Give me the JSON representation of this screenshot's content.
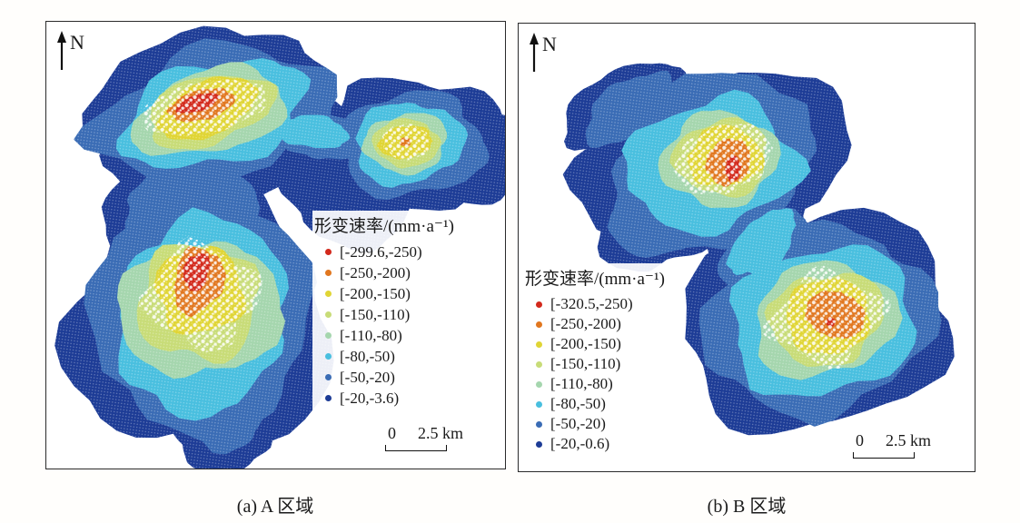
{
  "figure": {
    "panels": [
      {
        "id": "panel-a",
        "caption": "(a) A 区域",
        "north_label": "N",
        "legend": {
          "title": "形变速率/(mm·a⁻¹)",
          "entries": [
            {
              "label": "[-299.6,-250)",
              "color": "#d3291c"
            },
            {
              "label": "[-250,-200)",
              "color": "#e1771f"
            },
            {
              "label": "[-200,-150)",
              "color": "#e0d535"
            },
            {
              "label": "[-150,-110)",
              "color": "#c8dc78"
            },
            {
              "label": "[-110,-80)",
              "color": "#a5d6ae"
            },
            {
              "label": "[-80,-50)",
              "color": "#49bfdf"
            },
            {
              "label": "[-50,-20)",
              "color": "#3a6cb5"
            },
            {
              "label": "[-20,-3.6)",
              "color": "#1d3c96"
            }
          ]
        },
        "scalebar": {
          "zero": "0",
          "distance": "2.5 km"
        }
      },
      {
        "id": "panel-b",
        "caption": "(b) B 区域",
        "north_label": "N",
        "legend": {
          "title": "形变速率/(mm·a⁻¹)",
          "entries": [
            {
              "label": "[-320.5,-250)",
              "color": "#d3291c"
            },
            {
              "label": "[-250,-200)",
              "color": "#e1771f"
            },
            {
              "label": "[-200,-150)",
              "color": "#e0d535"
            },
            {
              "label": "[-150,-110)",
              "color": "#c8dc78"
            },
            {
              "label": "[-110,-80)",
              "color": "#a5d6ae"
            },
            {
              "label": "[-80,-50)",
              "color": "#49bfdf"
            },
            {
              "label": "[-50,-20)",
              "color": "#3a6cb5"
            },
            {
              "label": "[-20,-0.6)",
              "color": "#1d3c96"
            }
          ]
        },
        "scalebar": {
          "zero": "0",
          "distance": "2.5 km"
        }
      }
    ]
  }
}
